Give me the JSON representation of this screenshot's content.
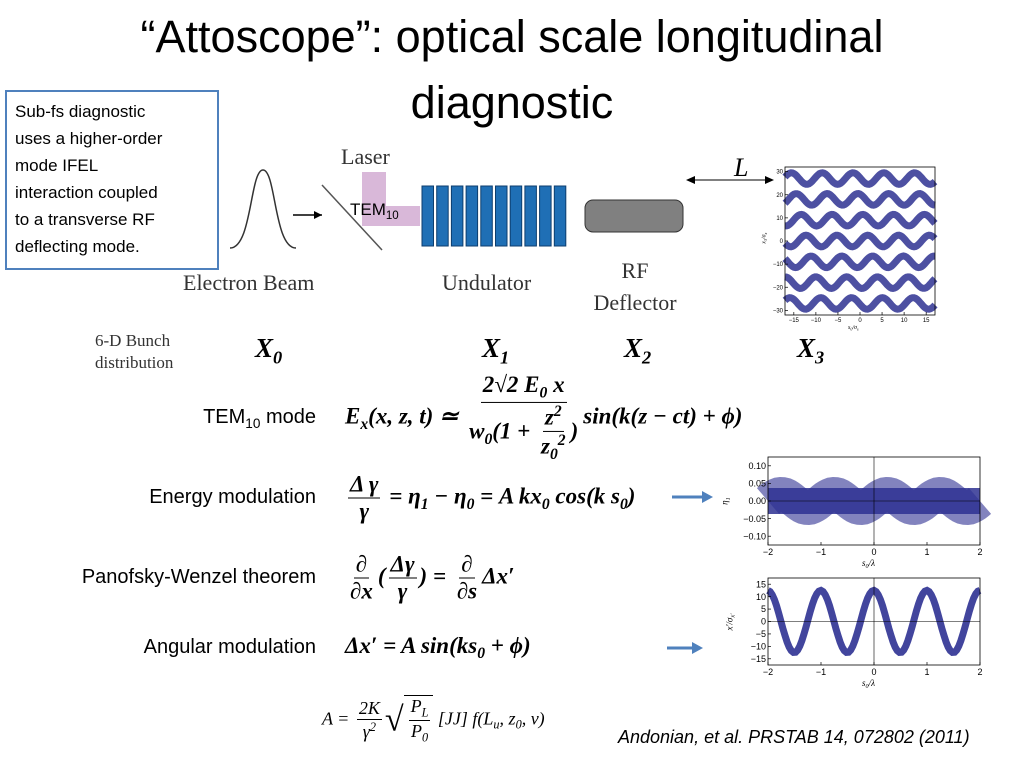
{
  "title": [
    "“Attoscope”: optical scale longitudinal",
    "diagnostic"
  ],
  "callout": [
    "Sub-fs diagnostic",
    "uses a higher-order",
    "mode IFEL",
    "interaction coupled",
    "to a transverse RF",
    "deflecting mode."
  ],
  "diagram": {
    "laser": "Laser",
    "tem": [
      {
        "t": "TEM"
      },
      {
        "t": "10",
        "s": "sub"
      }
    ],
    "electron_beam": "Electron Beam",
    "undulator": "Undulator",
    "rf_deflector": [
      "RF",
      "Deflector"
    ],
    "L": "L",
    "bunch_label": [
      "6-D Bunch",
      "distribution"
    ],
    "stages": [
      [
        {
          "t": "X"
        },
        {
          "t": "0",
          "s": "sub"
        }
      ],
      [
        {
          "t": "X"
        },
        {
          "t": "1",
          "s": "sub"
        }
      ],
      [
        {
          "t": "X"
        },
        {
          "t": "2",
          "s": "sub"
        }
      ],
      [
        {
          "t": "X"
        },
        {
          "t": "3",
          "s": "sub"
        }
      ]
    ]
  },
  "rows": [
    {
      "label": [
        {
          "t": "TEM"
        },
        {
          "t": "10",
          "s": "sub"
        },
        {
          "t": " mode"
        }
      ],
      "equation": [
        {
          "t": "E"
        },
        {
          "t": "x",
          "s": "sub"
        },
        {
          "t": "(x, z, t) ≃ "
        },
        {
          "frac": {
            "num": [
              {
                "t": "2√2 E"
              },
              {
                "t": "0",
                "s": "sub"
              },
              {
                "t": " x"
              }
            ],
            "den": [
              {
                "t": "w"
              },
              {
                "t": "0",
                "s": "sub"
              },
              {
                "t": "(1 + "
              },
              {
                "frac": {
                  "num": [
                    {
                      "t": "z"
                    },
                    {
                      "t": "2",
                      "s": "sup"
                    }
                  ],
                  "den": [
                    {
                      "t": "z"
                    },
                    {
                      "t": "0",
                      "s": "sub"
                    },
                    {
                      "t": "2",
                      "s": "sup"
                    }
                  ]
                }
              },
              {
                "t": ")"
              }
            ]
          }
        },
        {
          "t": "sin(k(z − ct) + ϕ)"
        }
      ]
    },
    {
      "label": [
        {
          "t": "Energy modulation"
        }
      ],
      "equation": [
        {
          "frac": {
            "num": [
              {
                "t": "Δ γ"
              }
            ],
            "den": [
              {
                "t": "γ"
              }
            ]
          }
        },
        {
          "t": " = η"
        },
        {
          "t": "1",
          "s": "sub"
        },
        {
          "t": " − η"
        },
        {
          "t": "0",
          "s": "sub"
        },
        {
          "t": " = A kx"
        },
        {
          "t": "0",
          "s": "sub"
        },
        {
          "t": " cos(k s"
        },
        {
          "t": "0",
          "s": "sub"
        },
        {
          "t": ")"
        }
      ]
    },
    {
      "label": [
        {
          "t": "Panofsky-Wenzel theorem"
        }
      ],
      "equation": [
        {
          "frac": {
            "num": [
              {
                "t": "∂"
              }
            ],
            "den": [
              {
                "t": "∂x"
              }
            ]
          }
        },
        {
          "t": "("
        },
        {
          "frac": {
            "num": [
              {
                "t": "Δγ"
              }
            ],
            "den": [
              {
                "t": "γ"
              }
            ]
          }
        },
        {
          "t": ") = "
        },
        {
          "frac": {
            "num": [
              {
                "t": "∂"
              }
            ],
            "den": [
              {
                "t": "∂s"
              }
            ]
          }
        },
        {
          "t": "Δx′"
        }
      ]
    },
    {
      "label": [
        {
          "t": "Angular modulation"
        }
      ],
      "equation": [
        {
          "t": "Δx′ = A sin(ks"
        },
        {
          "t": "0",
          "s": "sub"
        },
        {
          "t": " + ϕ)"
        }
      ]
    }
  ],
  "amplitude": [
    {
      "t": "A = "
    },
    {
      "frac": {
        "num": [
          {
            "t": "2K"
          }
        ],
        "den": [
          {
            "t": "γ"
          },
          {
            "t": "2",
            "s": "sup"
          }
        ]
      }
    },
    {
      "sqrt": [
        {
          "frac": {
            "num": [
              {
                "t": "P"
              },
              {
                "t": "L",
                "s": "sub"
              }
            ],
            "den": [
              {
                "t": "P"
              },
              {
                "t": "0",
                "s": "sub"
              }
            ]
          }
        }
      ]
    },
    {
      "t": " [JJ] f(L"
    },
    {
      "t": "u",
      "s": "sub"
    },
    {
      "t": ", z"
    },
    {
      "t": "0",
      "s": "sub"
    },
    {
      "t": ", ν)"
    }
  ],
  "citation": "Andonian, et al. PRSTAB 14, 072802 (2011)",
  "plots": [
    {
      "xlim": [
        -17,
        17
      ],
      "ylim": [
        -32,
        32
      ],
      "xticks": [
        {
          "value": -15,
          "label": "−15"
        },
        {
          "value": -10,
          "label": "−10"
        },
        {
          "value": -5,
          "label": "−5"
        },
        0,
        5,
        10,
        15
      ],
      "yticks": [
        30,
        20,
        10,
        0,
        {
          "value": -10,
          "label": "−10"
        },
        {
          "value": -20,
          "label": "−20"
        },
        {
          "value": -30,
          "label": "−30"
        }
      ],
      "xlabel": [
        {
          "t": "s"
        },
        {
          "t": "0",
          "s": "sub"
        },
        {
          "t": "/σ"
        },
        {
          "t": "s",
          "s": "sub"
        }
      ],
      "ylabel": [
        {
          "t": "x"
        },
        {
          "t": "3",
          "s": "sub"
        },
        {
          "t": "/σ"
        },
        {
          "t": "x",
          "s": "sub"
        }
      ]
    },
    {
      "xlim": [
        -2,
        2
      ],
      "ylim": [
        -0.125,
        0.125
      ],
      "xticks": [
        {
          "value": -2,
          "label": "−2"
        },
        {
          "value": -1,
          "label": "−1"
        },
        0,
        1,
        2
      ],
      "yticks": [
        {
          "value": 0.1,
          "label": "0.10"
        },
        0.05,
        {
          "value": 0,
          "label": "0.00"
        },
        {
          "value": -0.05,
          "label": "−0.05"
        },
        {
          "value": -0.1,
          "label": "−0.10"
        }
      ],
      "xlabel": [
        {
          "t": "s"
        },
        {
          "t": "0",
          "s": "sub"
        },
        {
          "t": "/λ"
        }
      ],
      "ylabel": [
        {
          "t": "η"
        },
        {
          "t": "1",
          "s": "sub"
        }
      ]
    },
    {
      "xlim": [
        -2,
        2
      ],
      "ylim": [
        -17.5,
        17.5
      ],
      "xticks": [
        {
          "value": -2,
          "label": "−2"
        },
        {
          "value": -1,
          "label": "−1"
        },
        0,
        1,
        2
      ],
      "yticks": [
        15,
        10,
        5,
        0,
        {
          "value": -5,
          "label": "−5"
        },
        {
          "value": -10,
          "label": "−10"
        },
        {
          "value": -15,
          "label": "−15"
        }
      ],
      "xlabel": [
        {
          "t": "s"
        },
        {
          "t": "0",
          "s": "sub"
        },
        {
          "t": "/λ"
        }
      ],
      "ylabel": [
        {
          "t": "x′/σ"
        },
        {
          "t": "x′",
          "s": "sub"
        }
      ]
    }
  ]
}
